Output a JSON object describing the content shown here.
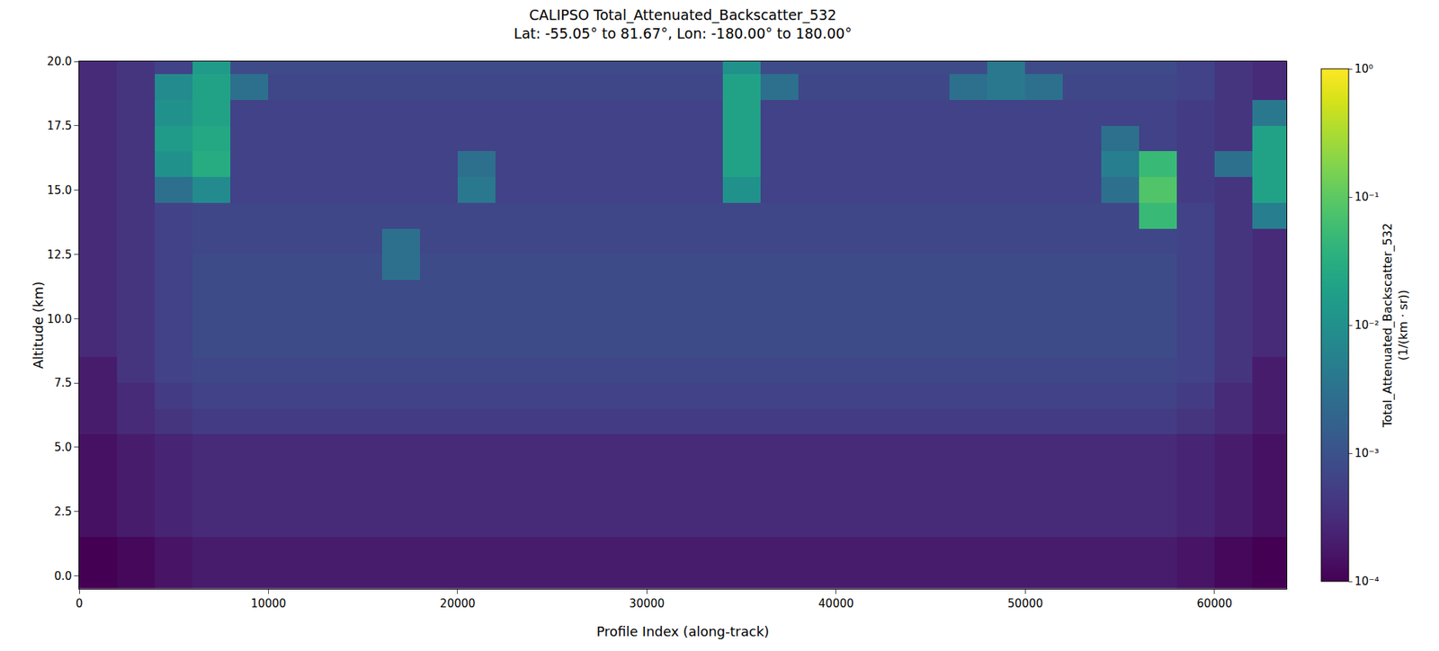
{
  "chart_data": {
    "type": "heatmap",
    "title": "CALIPSO Total_Attenuated_Backscatter_532\nLat: -55.05° to 81.67°, Lon: -180.00° to 180.00°",
    "x_label": "Profile Index (along-track)",
    "y_label": "Altitude (km)",
    "xlim": [
      0,
      63800
    ],
    "xticks": [
      0,
      10000,
      20000,
      30000,
      40000,
      50000,
      60000
    ],
    "ylim": [
      -0.5,
      20
    ],
    "yticks": [
      {
        "value": 0,
        "label": "0.0"
      },
      2.5,
      {
        "value": 5,
        "label": "5.0"
      },
      7.5,
      {
        "value": 10,
        "label": "10.0"
      },
      12.5,
      {
        "value": 15,
        "label": "15.0"
      },
      17.5,
      {
        "value": 20,
        "label": "20.0"
      }
    ],
    "color": "Viridis",
    "colorbar": {
      "label": "Total_Attenuated_Backscatter_532\n(1/(km · sr))",
      "log": true,
      "range": [
        0.0001,
        1
      ],
      "ticks": [
        {
          "value": 0.0001,
          "label": "10⁻⁴"
        },
        {
          "value": 0.001,
          "label": "10⁻³"
        },
        {
          "value": 0.01,
          "label": "10⁻²"
        },
        {
          "value": 0.1,
          "label": "10⁻¹"
        },
        {
          "value": 1,
          "label": "10⁰"
        }
      ]
    },
    "x": [
      1000,
      3000,
      5000,
      7000,
      9000,
      11000,
      13000,
      15000,
      17000,
      19000,
      21000,
      23000,
      25000,
      27000,
      29000,
      31000,
      33000,
      35000,
      37000,
      39000,
      41000,
      43000,
      45000,
      47000,
      49000,
      51000,
      53000,
      55000,
      57000,
      59000,
      61000,
      63000
    ],
    "y": [
      0,
      1,
      2,
      3,
      4,
      5,
      6,
      7,
      8,
      9,
      10,
      11,
      12,
      13,
      14,
      15,
      16,
      17,
      18,
      19,
      20
    ],
    "z": [
      [
        0.0001,
        0.00012,
        0.00016,
        0.0002,
        0.0002,
        0.0002,
        0.0002,
        0.0002,
        0.0002,
        0.0002,
        0.0002,
        0.0002,
        0.0002,
        0.0002,
        0.0002,
        0.0002,
        0.0002,
        0.0002,
        0.0002,
        0.0002,
        0.0002,
        0.0002,
        0.0002,
        0.0002,
        0.0002,
        0.0002,
        0.0002,
        0.0002,
        0.0002,
        0.00016,
        0.00012,
        0.0001
      ],
      [
        0.0001,
        0.00012,
        0.00016,
        0.0002,
        0.0002,
        0.0002,
        0.0002,
        0.0002,
        0.0002,
        0.0002,
        0.0002,
        0.0002,
        0.0002,
        0.0002,
        0.0002,
        0.0002,
        0.0002,
        0.0002,
        0.0002,
        0.0002,
        0.0002,
        0.0002,
        0.0002,
        0.0002,
        0.0002,
        0.0002,
        0.0002,
        0.0002,
        0.0002,
        0.00016,
        0.00012,
        0.0001
      ],
      [
        0.00015,
        0.0002,
        0.00025,
        0.0003,
        0.0003,
        0.0003,
        0.0003,
        0.0003,
        0.0003,
        0.0003,
        0.0003,
        0.0003,
        0.0003,
        0.0003,
        0.0003,
        0.0003,
        0.0003,
        0.0003,
        0.0003,
        0.0003,
        0.0003,
        0.0003,
        0.0003,
        0.0003,
        0.0003,
        0.0003,
        0.0003,
        0.0003,
        0.0003,
        0.00025,
        0.0002,
        0.00015
      ],
      [
        0.00015,
        0.0002,
        0.00025,
        0.0003,
        0.0003,
        0.0003,
        0.0003,
        0.0003,
        0.0003,
        0.0003,
        0.0003,
        0.0003,
        0.0003,
        0.0003,
        0.0003,
        0.0003,
        0.0003,
        0.0003,
        0.0003,
        0.0003,
        0.0003,
        0.0003,
        0.0003,
        0.0003,
        0.0003,
        0.0003,
        0.0003,
        0.0003,
        0.0003,
        0.00025,
        0.0002,
        0.00015
      ],
      [
        0.00015,
        0.0002,
        0.00025,
        0.0003,
        0.0003,
        0.0003,
        0.0003,
        0.0003,
        0.0003,
        0.0003,
        0.0003,
        0.0003,
        0.0003,
        0.0003,
        0.0003,
        0.0003,
        0.0003,
        0.0003,
        0.0003,
        0.0003,
        0.0003,
        0.0003,
        0.0003,
        0.0003,
        0.0003,
        0.0003,
        0.0003,
        0.0003,
        0.0003,
        0.00025,
        0.0002,
        0.00015
      ],
      [
        0.00015,
        0.0002,
        0.00025,
        0.0003,
        0.0003,
        0.0003,
        0.0003,
        0.0003,
        0.0003,
        0.0003,
        0.0003,
        0.0003,
        0.0003,
        0.0003,
        0.0003,
        0.0003,
        0.0003,
        0.0003,
        0.0003,
        0.0003,
        0.0003,
        0.0003,
        0.0003,
        0.0003,
        0.0003,
        0.0003,
        0.0003,
        0.0003,
        0.0003,
        0.00025,
        0.0002,
        0.00015
      ],
      [
        0.0002,
        0.0003,
        0.0004,
        0.0005,
        0.0005,
        0.0005,
        0.0005,
        0.0005,
        0.0005,
        0.0005,
        0.0005,
        0.0005,
        0.0005,
        0.0005,
        0.0005,
        0.0005,
        0.0005,
        0.0005,
        0.0005,
        0.0005,
        0.0005,
        0.0005,
        0.0005,
        0.0005,
        0.0005,
        0.0005,
        0.0005,
        0.0005,
        0.0005,
        0.0004,
        0.0003,
        0.0002
      ],
      [
        0.0002,
        0.0003,
        0.0005,
        0.0006,
        0.0006,
        0.0006,
        0.0006,
        0.0006,
        0.0006,
        0.0006,
        0.0006,
        0.0006,
        0.0006,
        0.0006,
        0.0006,
        0.0006,
        0.0006,
        0.0006,
        0.0006,
        0.0006,
        0.0006,
        0.0006,
        0.0006,
        0.0006,
        0.0006,
        0.0006,
        0.0006,
        0.0006,
        0.0006,
        0.0005,
        0.0003,
        0.0002
      ],
      [
        0.0002,
        0.0004,
        0.0006,
        0.0007,
        0.0007,
        0.0007,
        0.0007,
        0.0007,
        0.0007,
        0.0007,
        0.0007,
        0.0007,
        0.0007,
        0.0007,
        0.0007,
        0.0007,
        0.0007,
        0.0007,
        0.0007,
        0.0007,
        0.0007,
        0.0007,
        0.0007,
        0.0007,
        0.0007,
        0.0007,
        0.0007,
        0.0007,
        0.0007,
        0.0006,
        0.0004,
        0.0002
      ],
      [
        0.0003,
        0.0004,
        0.0006,
        0.0008,
        0.0008,
        0.0008,
        0.0008,
        0.0008,
        0.0008,
        0.0008,
        0.0008,
        0.0008,
        0.0008,
        0.0008,
        0.0008,
        0.0008,
        0.0008,
        0.0008,
        0.0008,
        0.0008,
        0.0008,
        0.0008,
        0.0008,
        0.0008,
        0.0008,
        0.0008,
        0.0008,
        0.0008,
        0.0008,
        0.0006,
        0.0004,
        0.0003
      ],
      [
        0.0003,
        0.0004,
        0.0006,
        0.0008,
        0.0008,
        0.0008,
        0.0008,
        0.0008,
        0.0008,
        0.0008,
        0.0008,
        0.0008,
        0.0008,
        0.0008,
        0.0008,
        0.0008,
        0.0008,
        0.0008,
        0.0008,
        0.0008,
        0.0008,
        0.0008,
        0.0008,
        0.0008,
        0.0008,
        0.0008,
        0.0008,
        0.0008,
        0.0008,
        0.0006,
        0.0004,
        0.0003
      ],
      [
        0.0003,
        0.0004,
        0.0006,
        0.0008,
        0.0008,
        0.0008,
        0.0008,
        0.0008,
        0.0008,
        0.0008,
        0.0008,
        0.0008,
        0.0008,
        0.0008,
        0.0008,
        0.0008,
        0.0008,
        0.0008,
        0.0008,
        0.0008,
        0.0008,
        0.0008,
        0.0008,
        0.0008,
        0.0008,
        0.0008,
        0.0008,
        0.0008,
        0.0008,
        0.0006,
        0.0004,
        0.0003
      ],
      [
        0.0003,
        0.0004,
        0.0006,
        0.0008,
        0.0008,
        0.0008,
        0.0008,
        0.0008,
        0.003,
        0.0008,
        0.0008,
        0.0008,
        0.0008,
        0.0008,
        0.0008,
        0.0008,
        0.0008,
        0.0008,
        0.0008,
        0.0008,
        0.0008,
        0.0008,
        0.0008,
        0.0008,
        0.0008,
        0.0008,
        0.0008,
        0.0008,
        0.0008,
        0.0006,
        0.0004,
        0.0003
      ],
      [
        0.0003,
        0.0004,
        0.0006,
        0.0007,
        0.0007,
        0.0007,
        0.0007,
        0.0007,
        0.003,
        0.0007,
        0.0007,
        0.0007,
        0.0007,
        0.0007,
        0.0007,
        0.0007,
        0.0007,
        0.0007,
        0.0007,
        0.0007,
        0.0007,
        0.0007,
        0.0007,
        0.0007,
        0.0007,
        0.0007,
        0.0007,
        0.0007,
        0.0007,
        0.0006,
        0.0004,
        0.0003
      ],
      [
        0.0003,
        0.0004,
        0.0006,
        0.0007,
        0.0007,
        0.0007,
        0.0007,
        0.0007,
        0.0007,
        0.0007,
        0.0007,
        0.0007,
        0.0007,
        0.0007,
        0.0007,
        0.0007,
        0.0007,
        0.0007,
        0.0007,
        0.0007,
        0.0007,
        0.0007,
        0.0007,
        0.0007,
        0.0007,
        0.0007,
        0.0007,
        0.0007,
        0.05,
        0.0006,
        0.0004,
        0.005
      ],
      [
        0.0003,
        0.0004,
        0.003,
        0.008,
        0.0006,
        0.0006,
        0.0006,
        0.0006,
        0.0006,
        0.0006,
        0.004,
        0.0006,
        0.0006,
        0.0006,
        0.0006,
        0.0006,
        0.0006,
        0.01,
        0.0006,
        0.0006,
        0.0006,
        0.0006,
        0.0006,
        0.0006,
        0.0006,
        0.0006,
        0.0006,
        0.003,
        0.08,
        0.0005,
        0.0004,
        0.02
      ],
      [
        0.0003,
        0.0004,
        0.01,
        0.03,
        0.0006,
        0.0006,
        0.0006,
        0.0006,
        0.0006,
        0.0006,
        0.003,
        0.0006,
        0.0006,
        0.0006,
        0.0006,
        0.0006,
        0.0006,
        0.02,
        0.0006,
        0.0006,
        0.0006,
        0.0006,
        0.0006,
        0.0006,
        0.0006,
        0.0006,
        0.0006,
        0.005,
        0.05,
        0.0005,
        0.003,
        0.02
      ],
      [
        0.0003,
        0.0004,
        0.015,
        0.025,
        0.0006,
        0.0006,
        0.0006,
        0.0006,
        0.0006,
        0.0006,
        0.0006,
        0.0006,
        0.0006,
        0.0006,
        0.0006,
        0.0006,
        0.0006,
        0.02,
        0.0006,
        0.0006,
        0.0006,
        0.0006,
        0.0006,
        0.0006,
        0.0006,
        0.0006,
        0.0006,
        0.003,
        0.0006,
        0.0005,
        0.0004,
        0.02
      ],
      [
        0.0003,
        0.0004,
        0.01,
        0.02,
        0.0006,
        0.0006,
        0.0006,
        0.0006,
        0.0006,
        0.0006,
        0.0006,
        0.0006,
        0.0006,
        0.0006,
        0.0006,
        0.0006,
        0.0006,
        0.02,
        0.0006,
        0.0006,
        0.0006,
        0.0006,
        0.0006,
        0.0006,
        0.0006,
        0.0006,
        0.0006,
        0.0006,
        0.0006,
        0.0005,
        0.0004,
        0.004
      ],
      [
        0.0003,
        0.0004,
        0.008,
        0.02,
        0.003,
        0.0007,
        0.0007,
        0.0007,
        0.0007,
        0.0007,
        0.0007,
        0.0007,
        0.0007,
        0.0007,
        0.0007,
        0.0007,
        0.0007,
        0.02,
        0.003,
        0.0007,
        0.0007,
        0.0007,
        0.0007,
        0.003,
        0.004,
        0.003,
        0.0007,
        0.0007,
        0.0007,
        0.0006,
        0.0004,
        0.0003
      ],
      [
        0.0003,
        0.0004,
        0.0006,
        0.015,
        0.0008,
        0.0008,
        0.0008,
        0.0008,
        0.0008,
        0.0008,
        0.0008,
        0.0008,
        0.0008,
        0.0008,
        0.0008,
        0.0008,
        0.0008,
        0.01,
        0.0008,
        0.0008,
        0.0008,
        0.0008,
        0.0008,
        0.0008,
        0.004,
        0.0008,
        0.0008,
        0.0008,
        0.0008,
        0.0006,
        0.0004,
        0.0003
      ]
    ]
  }
}
